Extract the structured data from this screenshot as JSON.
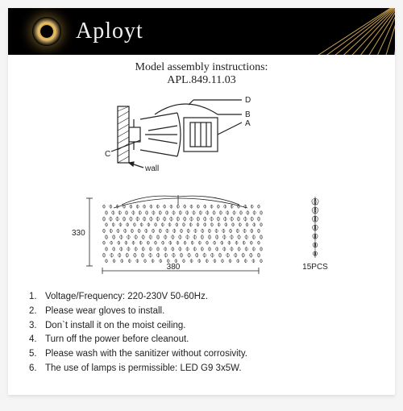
{
  "brand": "Aployt",
  "title_line1": "Model assembly instructions:",
  "title_line2": "APL.849.11.03",
  "diagram": {
    "labels": {
      "d": "D",
      "b": "B",
      "a": "A",
      "c": "C"
    },
    "wall": "wall"
  },
  "assembly": {
    "width_mm": "380",
    "height_mm": "330",
    "pendant_pcs": "15PCS"
  },
  "instructions": [
    "Voltage/Frequency: 220-230V 50-60Hz.",
    "Please wear gloves to install.",
    "Don`t install it on the moist ceiling.",
    "Turn off the power before cleanout.",
    "Please wash with the sanitizer without corrosivity.",
    "The use of lamps is permissible: LED G9 3x5W."
  ],
  "colors": {
    "banner_bg": "#000000",
    "brand_text": "#f0f0f0",
    "gold": "#c9a050",
    "stroke": "#222222",
    "page_bg": "#ffffff"
  },
  "typography": {
    "brand_fontsize": 28,
    "title_fontsize": 14,
    "instr_fontsize": 11.5
  }
}
